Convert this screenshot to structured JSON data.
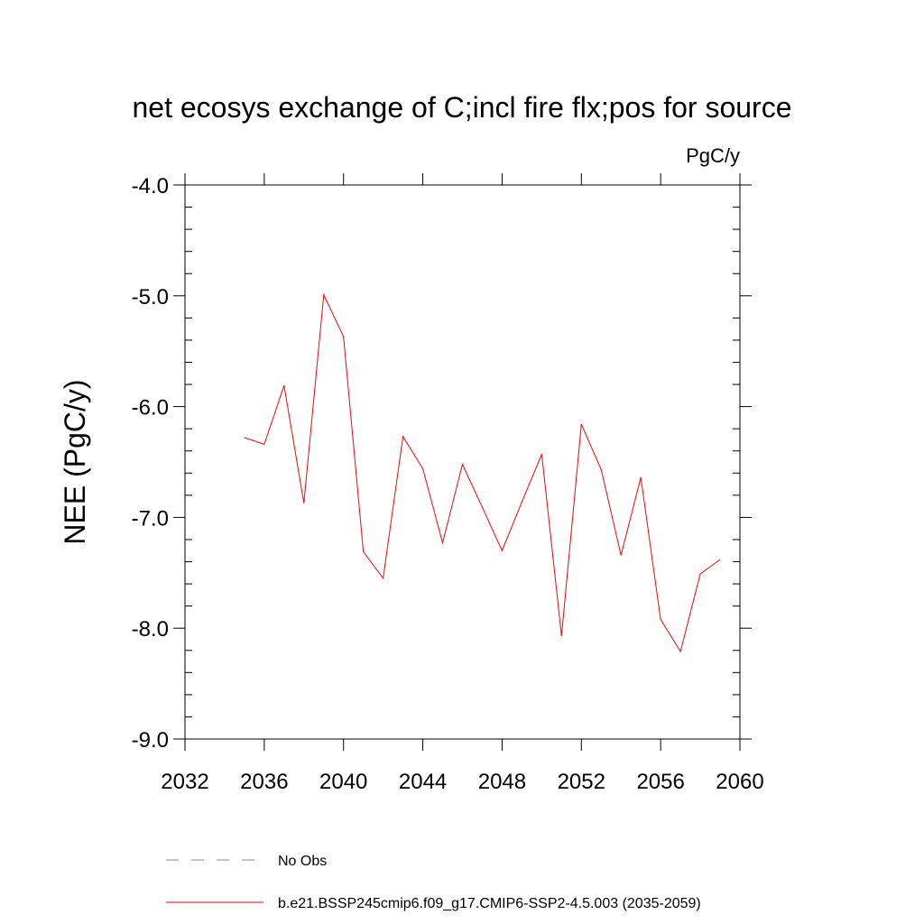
{
  "chart_data": {
    "type": "line",
    "title": "net ecosys exchange of C;incl fire flx;pos for source",
    "units_label": "PgC/y",
    "xlabel": "",
    "ylabel": "NEE  (PgC/y)",
    "xlim": [
      2032,
      2060
    ],
    "ylim": [
      -9.0,
      -4.0
    ],
    "x_ticks": [
      2032,
      2036,
      2040,
      2044,
      2048,
      2052,
      2056,
      2060
    ],
    "x_tick_labels": [
      "2032",
      "2036",
      "2040",
      "2044",
      "2048",
      "2052",
      "2056",
      "2060"
    ],
    "y_ticks": [
      -9.0,
      -8.0,
      -7.0,
      -6.0,
      -5.0,
      -4.0
    ],
    "y_tick_labels": [
      "-9.0",
      "-8.0",
      "-7.0",
      "-6.0",
      "-5.0",
      "-4.0"
    ],
    "grid": false,
    "series": [
      {
        "name": "b.e21.BSSP245cmip6.f09_g17.CMIP6-SSP2-4.5.003 (2035-2059)",
        "color": "#ff0000",
        "x": [
          2035,
          2036,
          2037,
          2038,
          2039,
          2040,
          2041,
          2042,
          2043,
          2044,
          2045,
          2046,
          2047,
          2048,
          2049,
          2050,
          2051,
          2052,
          2053,
          2054,
          2055,
          2056,
          2057,
          2058,
          2059
        ],
        "values": [
          -6.28,
          -6.34,
          -5.81,
          -6.87,
          -4.99,
          -5.37,
          -7.31,
          -7.55,
          -6.27,
          -6.56,
          -7.23,
          -6.52,
          -6.91,
          -7.3,
          -6.86,
          -6.43,
          -8.07,
          -6.16,
          -6.57,
          -7.34,
          -6.64,
          -7.92,
          -8.21,
          -7.51,
          -7.38
        ]
      }
    ],
    "legend": [
      {
        "label": "No Obs",
        "style": "dashed",
        "color": "#8080c0"
      },
      {
        "label": "b.e21.BSSP245cmip6.f09_g17.CMIP6-SSP2-4.5.003 (2035-2059)",
        "style": "solid",
        "color": "#ff0000"
      }
    ],
    "legend_position": "bottom"
  }
}
